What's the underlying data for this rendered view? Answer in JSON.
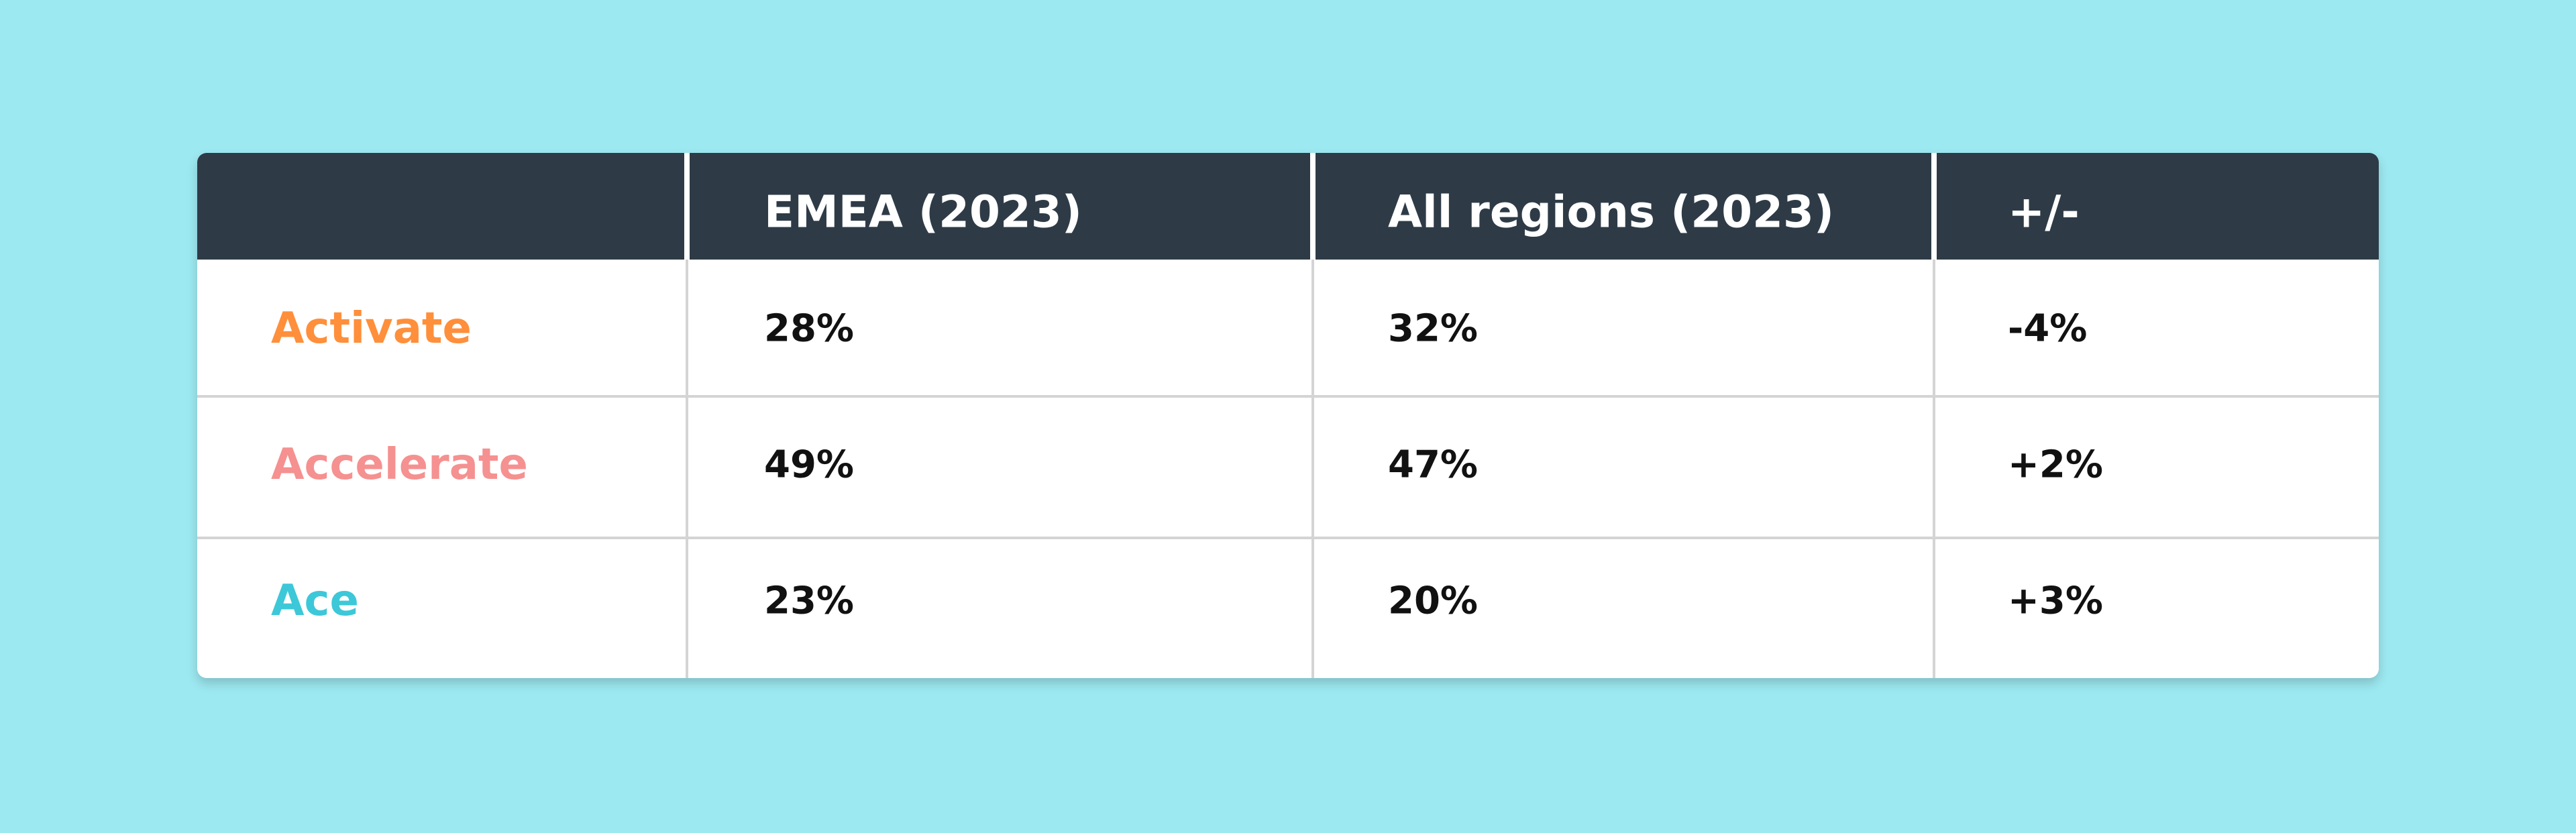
{
  "table": {
    "columns": [
      "EMEA (2023)",
      "All regions (2023)",
      "+/-"
    ],
    "rows": [
      {
        "label": "Activate",
        "cells": [
          "28%",
          "32%",
          "-4%"
        ]
      },
      {
        "label": "Accelerate",
        "cells": [
          "49%",
          "47%",
          "+2%"
        ]
      },
      {
        "label": "Ace",
        "cells": [
          "23%",
          "20%",
          "+3%"
        ]
      }
    ]
  }
}
